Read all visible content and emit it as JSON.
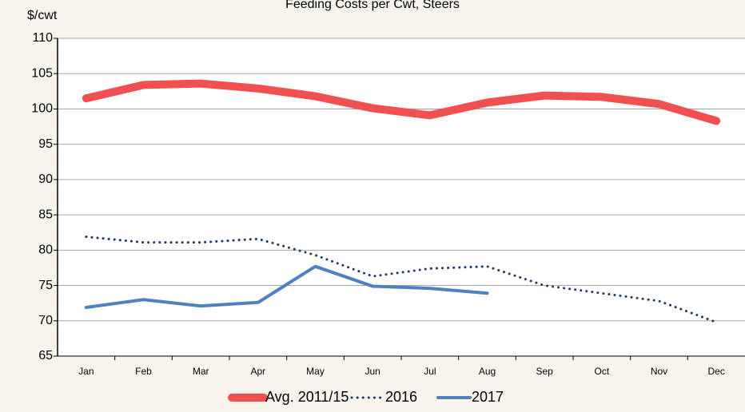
{
  "chart_data": {
    "type": "line",
    "title": "Feeding Costs per Cwt, Steers",
    "y_label": "$/cwt",
    "categories": [
      "Jan",
      "Feb",
      "Mar",
      "Apr",
      "May",
      "Jun",
      "Jul",
      "Aug",
      "Sep",
      "Oct",
      "Nov",
      "Dec"
    ],
    "series": [
      {
        "name": "Avg. 2011/15",
        "color": "#f05050",
        "style": "solid",
        "width": 10,
        "values": [
          101.5,
          103.4,
          103.6,
          102.9,
          101.8,
          100.1,
          99.1,
          100.9,
          101.9,
          101.7,
          100.7,
          98.3
        ]
      },
      {
        "name": "2016",
        "color": "#1f3864",
        "style": "dotted",
        "width": 3,
        "values": [
          81.9,
          81.1,
          81.1,
          81.6,
          79.3,
          76.3,
          77.4,
          77.7,
          75.0,
          73.9,
          72.8,
          69.8
        ]
      },
      {
        "name": "2017",
        "color": "#4f81bd",
        "style": "solid",
        "width": 4,
        "values": [
          71.9,
          73.0,
          72.1,
          72.6,
          77.7,
          74.9,
          74.6,
          73.9,
          null,
          null,
          null,
          null
        ]
      }
    ],
    "ylim": [
      65,
      110
    ],
    "yticks": [
      65,
      70,
      75,
      80,
      85,
      90,
      95,
      100,
      105,
      110
    ],
    "grid": true,
    "legend": "bottom"
  }
}
